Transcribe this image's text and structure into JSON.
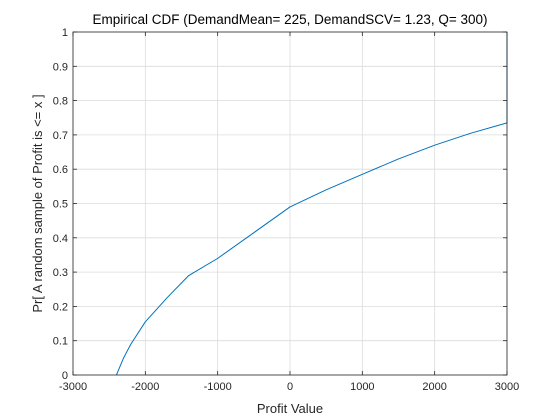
{
  "chart_data": {
    "type": "line",
    "title": "Empirical CDF  (DemandMean= 225, DemandSCV= 1.23, Q= 300)",
    "xlabel": "Profit Value",
    "ylabel": "Pr[ A random sample of Profit is <= x ]",
    "xlim": [
      -3000,
      3000
    ],
    "ylim": [
      0,
      1
    ],
    "xticks": [
      -3000,
      -2000,
      -1000,
      0,
      1000,
      2000,
      3000
    ],
    "xtick_labels": [
      "-3000",
      "-2000",
      "-1000",
      "0",
      "1000",
      "2000",
      "3000"
    ],
    "yticks": [
      0,
      0.1,
      0.2,
      0.3,
      0.4,
      0.5,
      0.6,
      0.7,
      0.8,
      0.9,
      1
    ],
    "ytick_labels": [
      "0",
      "0.1",
      "0.2",
      "0.3",
      "0.4",
      "0.5",
      "0.6",
      "0.7",
      "0.8",
      "0.9",
      "1"
    ],
    "grid": true,
    "line_color": "#0072BD",
    "series": [
      {
        "x": [
          -2400,
          -2380,
          -2300,
          -2200,
          -2000,
          -1700,
          -1400,
          -1000,
          -500,
          0,
          500,
          1000,
          1500,
          2000,
          2500,
          3000,
          3000
        ],
        "y": [
          0.0,
          0.01,
          0.05,
          0.09,
          0.155,
          0.225,
          0.29,
          0.34,
          0.415,
          0.49,
          0.54,
          0.585,
          0.63,
          0.67,
          0.705,
          0.735,
          1.0
        ]
      }
    ]
  }
}
